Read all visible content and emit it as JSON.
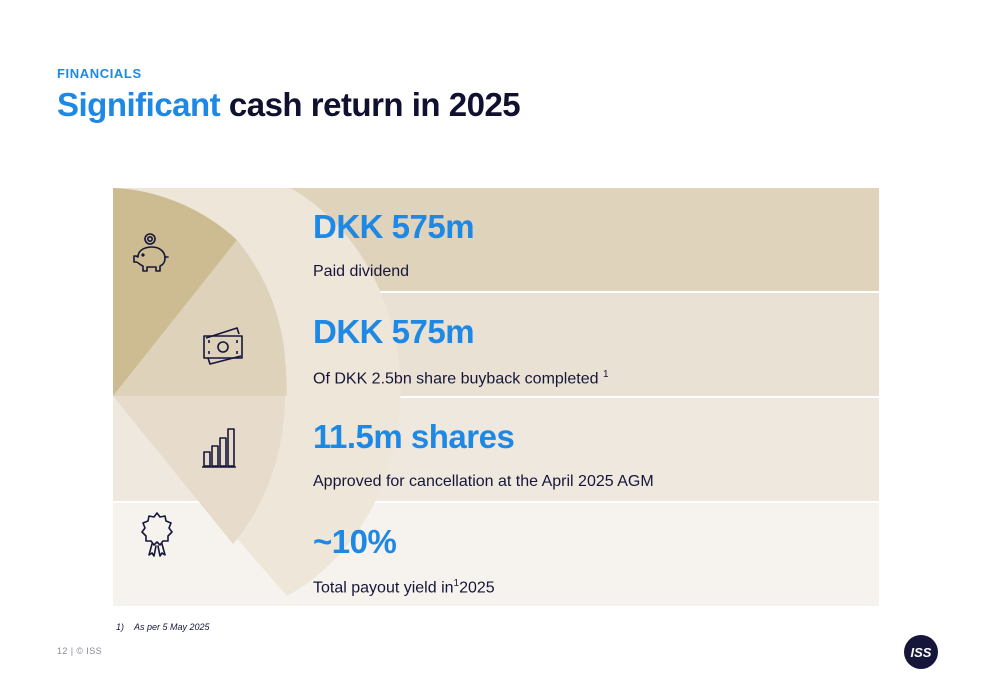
{
  "header": {
    "eyebrow": "FINANCIALS",
    "title_accent": "Significant",
    "title_rest": "cash return in 2025"
  },
  "rows": [
    {
      "icon": "piggy-bank-icon",
      "value": "DKK 575m",
      "label": "Paid dividend",
      "sup": ""
    },
    {
      "icon": "banknote-icon",
      "value": "DKK 575m",
      "label": "Of DKK 2.5bn share buyback completed",
      "sup": "1"
    },
    {
      "icon": "bar-chart-icon",
      "value": "11.5m shares",
      "label": "Approved for cancellation at the April 2025 AGM",
      "sup": ""
    },
    {
      "icon": "award-rosette-icon",
      "value": "~10%",
      "label_before": "Total payout yield in",
      "sup": "1",
      "label_after": "2025"
    }
  ],
  "footnote": {
    "num": "1)",
    "text": "As per 5 May 2025"
  },
  "footer": {
    "page": "12",
    "separator": "|",
    "copyright": "© ISS"
  },
  "logo_text": "ISS",
  "colors": {
    "accent": "#1e88e5",
    "band1": "#e0d3bc",
    "band2": "#e9e1d3",
    "band3": "#efe8de",
    "band4": "#f6f2ed",
    "pie_dark": "#cfbf97",
    "pie_mid": "#e0d3bc",
    "pie_light": "#efe6da",
    "logo": "#16163a"
  }
}
